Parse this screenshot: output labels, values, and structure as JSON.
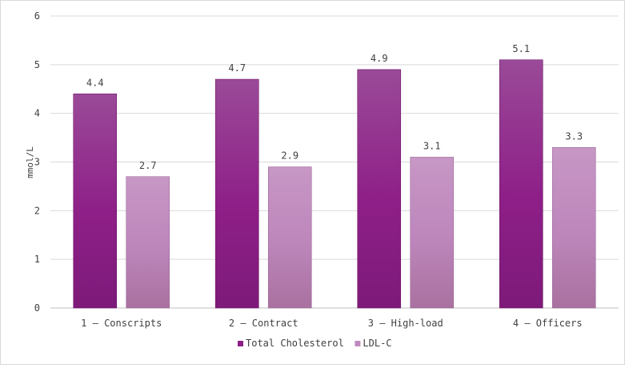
{
  "chart_data": {
    "type": "bar",
    "title": "",
    "xlabel": "",
    "ylabel": "mmol/L",
    "ylim": [
      0,
      6
    ],
    "yticks": [
      0,
      1,
      2,
      3,
      4,
      5,
      6
    ],
    "grid": true,
    "legend_position": "bottom",
    "categories": [
      "1 – Conscripts",
      "2 – Contract",
      "3 – High-load",
      "4 – Officers"
    ],
    "series": [
      {
        "name": "Total Cholesterol",
        "color": "#8b1f86",
        "values": [
          4.4,
          4.7,
          4.9,
          5.1
        ]
      },
      {
        "name": "LDL-C",
        "color": "#c08abf",
        "values": [
          2.7,
          2.9,
          3.1,
          3.3
        ]
      }
    ]
  }
}
